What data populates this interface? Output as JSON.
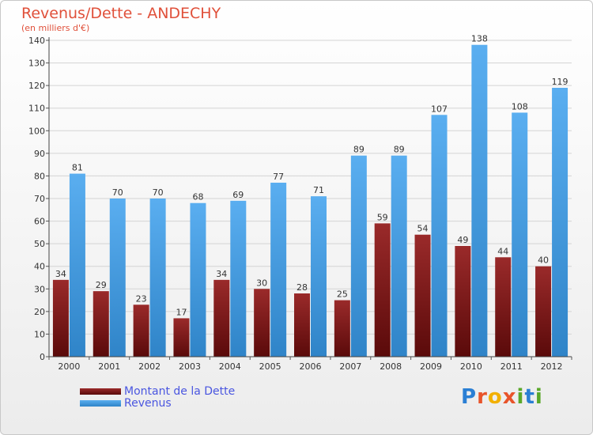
{
  "title": "Revenus/Dette - ANDECHY",
  "subtitle": "(en milliers d'€)",
  "logo": {
    "text": "Proxiti",
    "letter_colors": [
      "#2a7fd4",
      "#e8542a",
      "#f2b000",
      "#e8542a",
      "#5aa82a",
      "#2a7fd4",
      "#5aa82a"
    ]
  },
  "legend": {
    "items": [
      {
        "label": "Montant de la Dette",
        "color": "#7a1414"
      },
      {
        "label": "Revenus",
        "color": "#3f97dc"
      }
    ]
  },
  "chart_data": {
    "type": "bar",
    "title": "Revenus/Dette - ANDECHY",
    "subtitle": "(en milliers d'€)",
    "categories": [
      "2000",
      "2001",
      "2002",
      "2003",
      "2004",
      "2005",
      "2006",
      "2007",
      "2008",
      "2009",
      "2010",
      "2011",
      "2012"
    ],
    "series": [
      {
        "name": "Montant de la Dette",
        "color": "#7a1414",
        "values": [
          34,
          29,
          23,
          17,
          34,
          30,
          28,
          25,
          59,
          54,
          49,
          44,
          40
        ]
      },
      {
        "name": "Revenus",
        "color": "#3f97dc",
        "values": [
          81,
          70,
          70,
          68,
          69,
          77,
          71,
          89,
          89,
          107,
          138,
          108,
          119
        ]
      }
    ],
    "ylim": [
      0,
      140
    ],
    "yticks": [
      0,
      10,
      20,
      30,
      40,
      50,
      60,
      70,
      80,
      90,
      100,
      110,
      120,
      130,
      140
    ],
    "grid": true,
    "legend_position": "bottom-left"
  }
}
